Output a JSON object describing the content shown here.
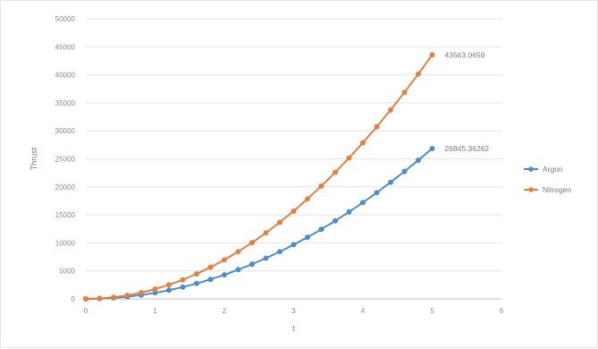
{
  "chart_data": {
    "type": "line",
    "title": "",
    "xlabel": "t",
    "ylabel": "Thrust",
    "xlim": [
      0,
      6
    ],
    "ylim": [
      0,
      50000
    ],
    "xticks": [
      "0",
      "1",
      "2",
      "3",
      "4",
      "5",
      "6"
    ],
    "yticks": [
      "0",
      "5000",
      "10000",
      "15000",
      "20000",
      "25000",
      "30000",
      "35000",
      "40000",
      "45000",
      "50000"
    ],
    "grid": "horizontal",
    "legend": "right",
    "x": [
      0,
      0.2,
      0.4,
      0.6,
      0.8,
      1.0,
      1.2,
      1.4,
      1.6,
      1.8,
      2.0,
      2.2,
      2.4,
      2.6,
      2.8,
      3.0,
      3.2,
      3.4,
      3.6,
      3.8,
      4.0,
      4.2,
      4.4,
      4.6,
      4.8,
      5.0
    ],
    "series": [
      {
        "name": "Argon",
        "color": "#4a8fd0",
        "values": [
          0,
          43,
          172,
          387,
          688,
          1075,
          1548,
          2107,
          2752,
          3483,
          4300,
          5203,
          6192,
          7267,
          8428,
          9675,
          11008,
          12427,
          13932,
          15523,
          17200,
          18963,
          20812,
          22747,
          24768,
          26845
        ],
        "end_label": "26845.36262"
      },
      {
        "name": "Nitrogen",
        "color": "#e87f3b",
        "values": [
          0,
          70,
          279,
          627,
          1115,
          1742,
          2509,
          3415,
          4460,
          5645,
          6970,
          8433,
          10036,
          11779,
          13660,
          15682,
          17842,
          20142,
          22582,
          25161,
          27880,
          30737,
          33735,
          36871,
          40148,
          43563
        ],
        "end_label": "43563.0659"
      }
    ]
  }
}
